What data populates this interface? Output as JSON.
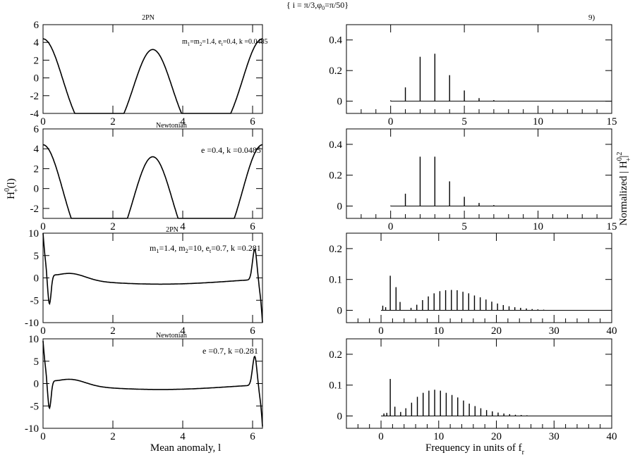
{
  "header": {
    "title": "{ i = π/3,φ",
    "title_sub": "0",
    "title_tail": "=π/50}",
    "figure_label": "9)"
  },
  "axis_labels": {
    "left_y": "H",
    "left_y_sup": "0",
    "left_y_sub": "+",
    "left_y_tail": "(l)",
    "left_x": "Mean anomaly, l",
    "right_y": "Normalized | H",
    "right_y_sup": "0",
    "right_y_sub": "+",
    "right_y_tail": "|",
    "right_y_sq": "2",
    "right_x": "Frequency in units of f",
    "right_x_sub": "r"
  },
  "chart_data": [
    {
      "id": "p1",
      "type": "line",
      "title": "2PN",
      "annotation": "m1=m2=1.4, et=0.4, k=0.0485",
      "ann": [
        "m",
        "1",
        "=m",
        "2",
        "=1.4, e",
        "t",
        "=0.4, k =0.0485"
      ],
      "xlim": [
        0,
        6.283
      ],
      "ylim": [
        -4,
        6
      ],
      "xticks": [
        0,
        2,
        4,
        6
      ],
      "yticks": [
        -4,
        -2,
        0,
        2,
        4,
        6
      ],
      "curve": {
        "kind": "e04",
        "amp": 1
      }
    },
    {
      "id": "p2",
      "type": "line",
      "title": "Newtonian",
      "annotation": "e =0.4, k =0.0485",
      "ann": [
        "e =0.4, k =0.0485"
      ],
      "xlim": [
        0,
        6.283
      ],
      "ylim": [
        -3,
        6
      ],
      "xticks": [
        0,
        2,
        4,
        6
      ],
      "yticks": [
        -2,
        0,
        2,
        4,
        6
      ],
      "curve": {
        "kind": "e04",
        "amp": 1
      }
    },
    {
      "id": "p3",
      "type": "line",
      "title": "2PN",
      "annotation": "m1=1.4, m2=10, et=0.7, k=0.281",
      "ann": [
        "m",
        "1",
        "=1.4, m",
        "2",
        "=10, e",
        "t",
        "=0.7, k =0.281"
      ],
      "xlim": [
        0,
        6.283
      ],
      "ylim": [
        -10,
        10
      ],
      "xticks": [
        0,
        2,
        4,
        6
      ],
      "yticks": [
        -10,
        -5,
        0,
        5,
        10
      ],
      "curve": {
        "kind": "e07",
        "variant": "2pn"
      }
    },
    {
      "id": "p4",
      "type": "line",
      "title": "Newtonian",
      "annotation": "e =0.7, k =0.281",
      "ann": [
        "e =0.7, k =0.281"
      ],
      "xlim": [
        0,
        6.283
      ],
      "ylim": [
        -10,
        10
      ],
      "xticks": [
        0,
        2,
        4,
        6
      ],
      "yticks": [
        -10,
        -5,
        0,
        5,
        10
      ],
      "curve": {
        "kind": "e07",
        "variant": "newt"
      }
    },
    {
      "id": "s1",
      "type": "bar",
      "xlim": [
        -3,
        15
      ],
      "ylim": [
        -0.08,
        0.5
      ],
      "xticks": [
        0,
        5,
        10,
        15
      ],
      "yticks": [
        0,
        0.2,
        0.4
      ],
      "ytick_labels": [
        "0",
        "0.2",
        "0.4"
      ],
      "x": [
        0,
        1,
        2,
        3,
        4,
        5,
        6,
        7,
        8,
        9,
        10,
        11,
        12,
        13,
        14,
        15
      ],
      "values": [
        0.005,
        0.09,
        0.29,
        0.31,
        0.17,
        0.07,
        0.02,
        0.007,
        0.002,
        0.001,
        0.0005,
        0.0003,
        0.0002,
        0.0001,
        0.0001,
        0.0001
      ]
    },
    {
      "id": "s2",
      "type": "bar",
      "xlim": [
        -3,
        15
      ],
      "ylim": [
        -0.08,
        0.5
      ],
      "xticks": [
        0,
        5,
        10,
        15
      ],
      "yticks": [
        0,
        0.2,
        0.4
      ],
      "ytick_labels": [
        "0",
        "0.2",
        "0.4"
      ],
      "x": [
        0,
        1,
        2,
        3,
        4,
        5,
        6,
        7,
        8,
        9,
        10,
        11,
        12,
        13,
        14,
        15
      ],
      "values": [
        0.003,
        0.08,
        0.32,
        0.32,
        0.16,
        0.06,
        0.02,
        0.006,
        0.002,
        0.001,
        0.0005,
        0.0003,
        0.0002,
        0.0001,
        0.0001,
        0.0001
      ]
    },
    {
      "id": "s3",
      "type": "bar",
      "xlim": [
        -6,
        40
      ],
      "ylim": [
        -0.04,
        0.25
      ],
      "xticks": [
        0,
        10,
        20,
        30,
        40
      ],
      "yticks": [
        0,
        0.1,
        0.2
      ],
      "ytick_labels": [
        "0",
        "0.1",
        "0.2"
      ],
      "x": [
        0.3,
        0.8,
        1.6,
        2.6,
        3.3,
        5.2,
        6.2,
        7.2,
        8.2,
        9.2,
        10.2,
        11.2,
        12.2,
        13.2,
        14.2,
        15.2,
        16.2,
        17.2,
        18.2,
        19.2,
        20.2,
        21.2,
        22.2,
        23.2,
        24.2,
        25.2,
        26.2,
        27.2,
        28.2
      ],
      "values": [
        0.015,
        0.01,
        0.112,
        0.075,
        0.027,
        0.008,
        0.018,
        0.033,
        0.045,
        0.055,
        0.062,
        0.065,
        0.066,
        0.065,
        0.06,
        0.055,
        0.048,
        0.042,
        0.035,
        0.028,
        0.022,
        0.017,
        0.013,
        0.01,
        0.008,
        0.006,
        0.004,
        0.003,
        0.002
      ]
    },
    {
      "id": "s4",
      "type": "bar",
      "xlim": [
        -6,
        40
      ],
      "ylim": [
        -0.04,
        0.25
      ],
      "xticks": [
        0,
        10,
        20,
        30,
        40
      ],
      "yticks": [
        0,
        0.1,
        0.2
      ],
      "ytick_labels": [
        "0",
        "0.1",
        "0.2"
      ],
      "x": [
        0.5,
        1,
        1.6,
        2.4,
        3.4,
        4.3,
        5.3,
        6.3,
        7.3,
        8.3,
        9.3,
        10.3,
        11.3,
        12.3,
        13.3,
        14.3,
        15.3,
        16.3,
        17.3,
        18.3,
        19.3,
        20.3,
        21.3,
        22.3,
        23.3,
        24.3,
        25.3,
        26.3
      ],
      "values": [
        0.008,
        0.01,
        0.12,
        0.03,
        0.013,
        0.025,
        0.043,
        0.062,
        0.075,
        0.082,
        0.085,
        0.082,
        0.075,
        0.068,
        0.06,
        0.05,
        0.04,
        0.032,
        0.025,
        0.019,
        0.015,
        0.011,
        0.008,
        0.006,
        0.004,
        0.003,
        0.002,
        0.001
      ]
    }
  ]
}
